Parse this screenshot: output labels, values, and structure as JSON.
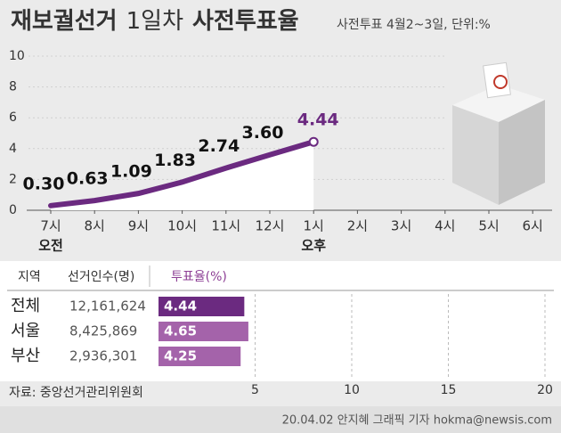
{
  "title_parts": [
    "재보궐선거",
    "1일차",
    "사전투표율"
  ],
  "subtitle": "사전투표 4월2~3일, 단위:%",
  "chart_data": [
    {
      "type": "line",
      "categories": [
        "7시",
        "8시",
        "9시",
        "10시",
        "11시",
        "12시",
        "1시",
        "2시",
        "3시",
        "4시",
        "5시",
        "6시"
      ],
      "period_labels": [
        "오전",
        null,
        null,
        null,
        null,
        null,
        "오후",
        null,
        null,
        null,
        null,
        null
      ],
      "values": [
        0.3,
        0.63,
        1.09,
        1.83,
        2.74,
        3.6,
        4.44,
        null,
        null,
        null,
        null,
        null
      ],
      "value_labels": [
        "0.30",
        "0.63",
        "1.09",
        "1.83",
        "2.74",
        "3.60",
        "4.44",
        null,
        null,
        null,
        null,
        null
      ],
      "color": "#6b2a80",
      "ylim": [
        0,
        10
      ],
      "yticks": [
        0,
        2,
        4,
        6,
        8,
        10
      ]
    },
    {
      "type": "hbar",
      "categories": [
        "전체",
        "서울",
        "부산"
      ],
      "values": [
        4.44,
        4.65,
        4.25
      ],
      "colors": [
        "#6b2a80",
        "#a463aa",
        "#a463aa"
      ],
      "xlim": [
        0,
        20
      ],
      "xticks": [
        5,
        10,
        15,
        20
      ]
    }
  ],
  "table": {
    "header": [
      "지역",
      "선거인수(명)",
      "투표율(%)"
    ],
    "voters": [
      "12,161,624",
      "8,425,869",
      "2,936,301"
    ]
  },
  "source": "자료: 중앙선거관리위원회",
  "credit": "20.04.02 안지혜 그래픽 기자 hokma@newsis.com"
}
